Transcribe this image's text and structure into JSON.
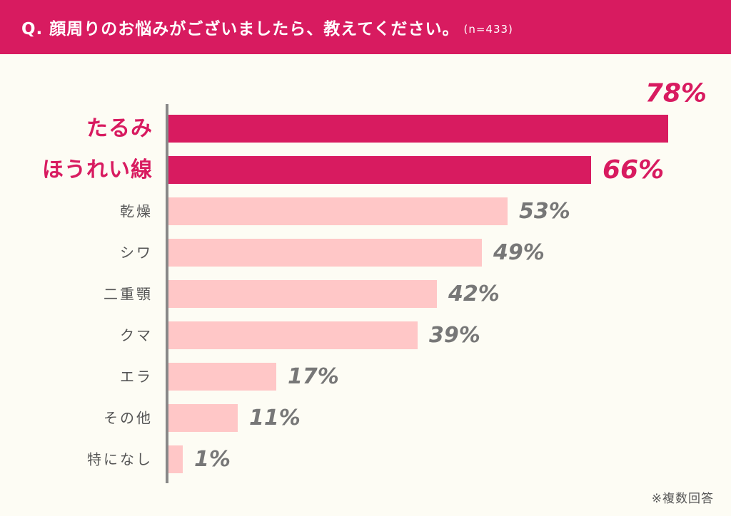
{
  "header": {
    "question": "Q. 顔周りのお悩みがございましたら、教えてください。",
    "sample": "(n=433)"
  },
  "footnote": "※複数回答",
  "colors": {
    "header_bg": "#D81B60",
    "highlight_bar": "#D81B60",
    "normal_bar": "#FFC7C7",
    "highlight_text": "#D81B60",
    "normal_text": "#777777",
    "label_text": "#555555",
    "axis": "#888888",
    "background": "#FDFCF4"
  },
  "chart_data": {
    "type": "bar",
    "orientation": "horizontal",
    "categories": [
      "たるみ",
      "ほうれい線",
      "乾燥",
      "シワ",
      "二重顎",
      "クマ",
      "エラ",
      "その他",
      "特になし"
    ],
    "values": [
      78,
      66,
      53,
      49,
      42,
      39,
      17,
      11,
      1
    ],
    "value_labels": [
      "78%",
      "66%",
      "53%",
      "49%",
      "42%",
      "39%",
      "17%",
      "11%",
      "1%"
    ],
    "highlighted": [
      true,
      true,
      false,
      false,
      false,
      false,
      false,
      false,
      false
    ],
    "unit": "%",
    "xlim": [
      0,
      100
    ],
    "grid": false,
    "legend": "none"
  }
}
